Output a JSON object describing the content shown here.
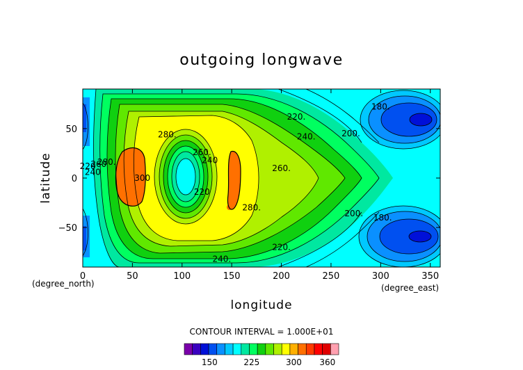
{
  "chart_data": {
    "type": "contour",
    "title": "outgoing longwave",
    "xlabel": "longitude",
    "ylabel": "latitude",
    "xunit": "(degree_east)",
    "yunit": "(degree_north)",
    "xlim": [
      0,
      360
    ],
    "ylim": [
      -90,
      90
    ],
    "xticks": [
      "0",
      "50",
      "100",
      "150",
      "200",
      "250",
      "300",
      "350"
    ],
    "yticks": [
      "50",
      "0",
      "−50"
    ],
    "contour_interval": "CONTOUR INTERVAL = 1.000E+01",
    "contour_labels": [
      {
        "text": "180.",
        "lon": 300,
        "lat": 72
      },
      {
        "text": "180.",
        "lon": 302,
        "lat": -40
      },
      {
        "text": "200.",
        "lon": 270,
        "lat": 45
      },
      {
        "text": "200.",
        "lon": 273,
        "lat": -36
      },
      {
        "text": "220.",
        "lon": 215,
        "lat": 62
      },
      {
        "text": "220.",
        "lon": 200,
        "lat": -70
      },
      {
        "text": "240.",
        "lon": 225,
        "lat": 42
      },
      {
        "text": "240.",
        "lon": 140,
        "lat": -82
      },
      {
        "text": "260.",
        "lon": 200,
        "lat": 10
      },
      {
        "text": "280.",
        "lon": 85,
        "lat": 44
      },
      {
        "text": "280.",
        "lon": 170,
        "lat": -30
      },
      {
        "text": "300",
        "lon": 60,
        "lat": 0
      },
      {
        "text": "260.",
        "lon": 120,
        "lat": 26
      },
      {
        "text": "240",
        "lon": 128,
        "lat": 18
      },
      {
        "text": "220",
        "lon": 120,
        "lat": -14
      },
      {
        "text": "220",
        "lon": 5,
        "lat": 12
      },
      {
        "text": "240",
        "lon": 10,
        "lat": 6
      },
      {
        "text": "260",
        "lon": 16,
        "lat": 14
      },
      {
        "text": "280.",
        "lon": 24,
        "lat": 16
      }
    ],
    "colorbar": {
      "ticks": [
        "150",
        "225",
        "300",
        "360"
      ],
      "colors": [
        "#7a00aa",
        "#3a00c0",
        "#0010d8",
        "#0050f0",
        "#0a90ff",
        "#00c8ff",
        "#00ffff",
        "#00e8a0",
        "#00ff60",
        "#10d010",
        "#60e800",
        "#b0f000",
        "#ffff00",
        "#ffb000",
        "#ff7000",
        "#ff3a00",
        "#ff0000",
        "#e00000",
        "#ffa0b0"
      ]
    },
    "legend": "bottom colorbar"
  }
}
